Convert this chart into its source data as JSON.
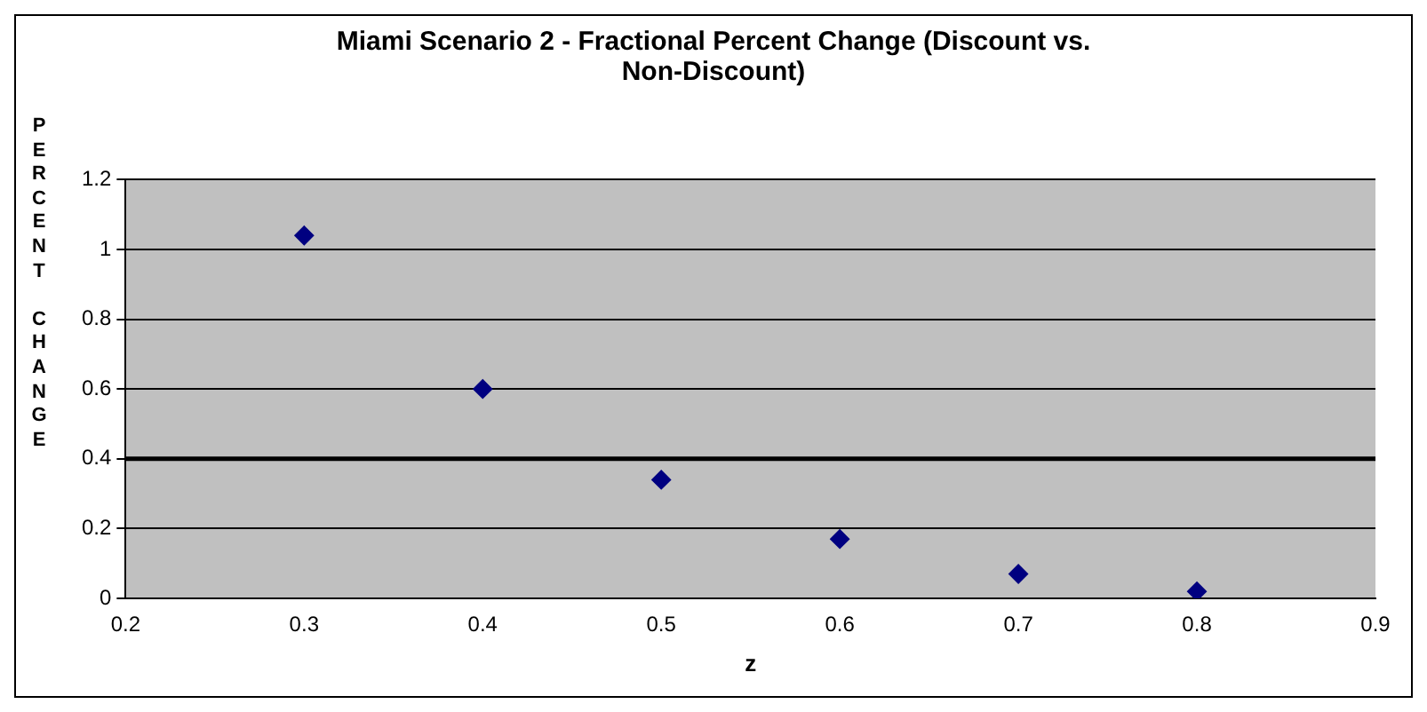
{
  "chart_data": {
    "type": "scatter",
    "title": "Miami Scenario 2 - Fractional Percent Change (Discount vs. Non-Discount)",
    "xlabel": "z",
    "ylabel": "PERCENT CHANGE",
    "x": [
      0.3,
      0.4,
      0.5,
      0.6,
      0.7,
      0.8
    ],
    "series": [
      {
        "color": "#000080",
        "values": [
          1.04,
          0.6,
          0.34,
          0.17,
          0.07,
          0.02
        ]
      }
    ],
    "xlim": [
      0.2,
      0.9
    ],
    "xticks": [
      0.2,
      0.3,
      0.4,
      0.5,
      0.6,
      0.7,
      0.8,
      0.9
    ],
    "ylim": [
      0,
      1.2
    ],
    "yticks": [
      0,
      0.2,
      0.4,
      0.6,
      0.8,
      1,
      1.2
    ],
    "ref_lines": [
      {
        "axis": "y",
        "value": 0.4,
        "color": "#000000"
      }
    ],
    "grid": "y",
    "marker": "diamond",
    "legend": false
  }
}
